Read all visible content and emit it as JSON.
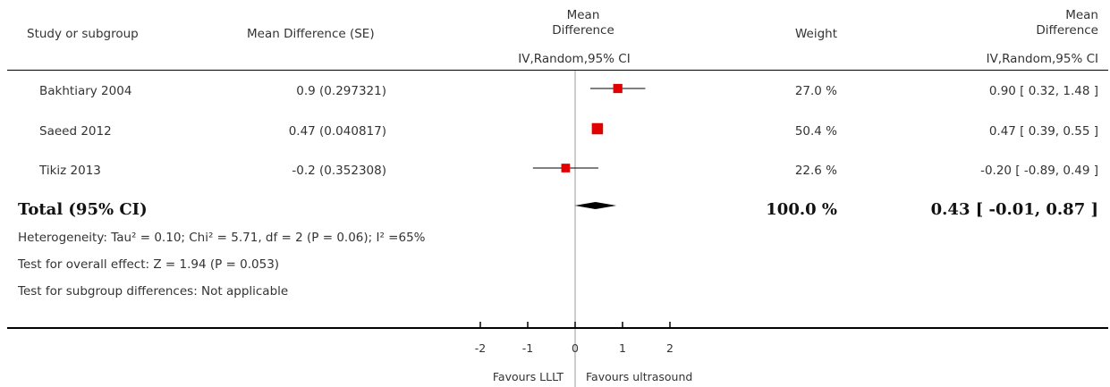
{
  "header": {
    "study_label": "Study or subgroup",
    "md_se_label": "Mean Difference (SE)",
    "plot_label_line1": "Mean",
    "plot_label_line2": "Difference",
    "plot_method": "IV,Random,95% CI",
    "weight_label": "Weight",
    "ci_label_line1": "Mean",
    "ci_label_line2": "Difference",
    "ci_method": "IV,Random,95% CI"
  },
  "studies": [
    {
      "name": "Bakhtiary 2004",
      "md_se": "0.9 (0.297321)",
      "weight": "27.0 %",
      "ci_text": "0.90 [ 0.32, 1.48 ]"
    },
    {
      "name": "Saeed 2012",
      "md_se": "0.47 (0.040817)",
      "weight": "50.4 %",
      "ci_text": "0.47 [ 0.39, 0.55 ]"
    },
    {
      "name": "Tikiz 2013",
      "md_se": "-0.2 (0.352308)",
      "weight": "22.6 %",
      "ci_text": "-0.20 [ -0.89, 0.49 ]"
    }
  ],
  "total": {
    "label": "Total (95% CI)",
    "weight": "100.0 %",
    "ci_text": "0.43 [ -0.01, 0.87 ]"
  },
  "stats": {
    "heterogeneity": "Heterogeneity: Tau² = 0.10; Chi² = 5.71, df = 2 (P = 0.06); I² =65%",
    "overall_effect": "Test for overall effect: Z = 1.94 (P = 0.053)",
    "subgroup": "Test for subgroup differences: Not applicable"
  },
  "axis": {
    "favours_left": "Favours LLLT",
    "favours_right": "Favours ultrasound"
  },
  "colors": {
    "marker": "#e00000",
    "diamond": "#000000"
  },
  "chart_data": {
    "type": "scatter",
    "xlim": [
      -2,
      2
    ],
    "ticks": [
      -2,
      -1,
      0,
      1,
      2
    ],
    "tick_labels": [
      "-2",
      "-1",
      "0",
      "1",
      "2"
    ],
    "series": [
      {
        "points": [
          {
            "study": "Bakhtiary 2004",
            "md": 0.9,
            "low": 0.32,
            "high": 1.48,
            "weight": 27.0
          },
          {
            "study": "Saeed 2012",
            "md": 0.47,
            "low": 0.39,
            "high": 0.55,
            "weight": 50.4
          },
          {
            "study": "Tikiz 2013",
            "md": -0.2,
            "low": -0.89,
            "high": 0.49,
            "weight": 22.6
          }
        ]
      }
    ],
    "pooled": {
      "md": 0.43,
      "low": -0.01,
      "high": 0.87
    }
  }
}
